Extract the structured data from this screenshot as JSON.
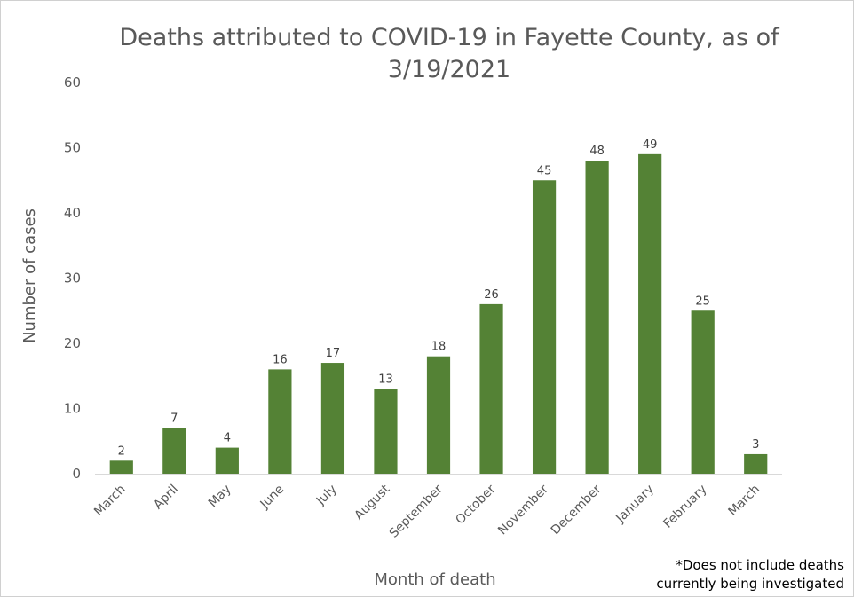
{
  "chart_data": {
    "type": "bar",
    "title_lines": [
      "Deaths attributed to COVID-19 in Fayette County, as of",
      "3/19/2021"
    ],
    "xlabel": "Month of death",
    "ylabel": "Number of cases",
    "ylim": [
      0,
      60
    ],
    "yticks": [
      0,
      10,
      20,
      30,
      40,
      50,
      60
    ],
    "categories": [
      "March",
      "April",
      "May",
      "June",
      "July",
      "August",
      "September",
      "October",
      "November",
      "December",
      "January",
      "February",
      "March"
    ],
    "values": [
      2,
      7,
      4,
      16,
      17,
      13,
      18,
      26,
      45,
      48,
      49,
      25,
      3
    ],
    "data_labels": true,
    "grid": false,
    "bar_color": "#548235"
  },
  "footnote": {
    "lines": [
      "*Does not include deaths",
      "currently being investigated"
    ]
  },
  "colors": {
    "text": "#595959",
    "axis": "#d9d9d9"
  }
}
